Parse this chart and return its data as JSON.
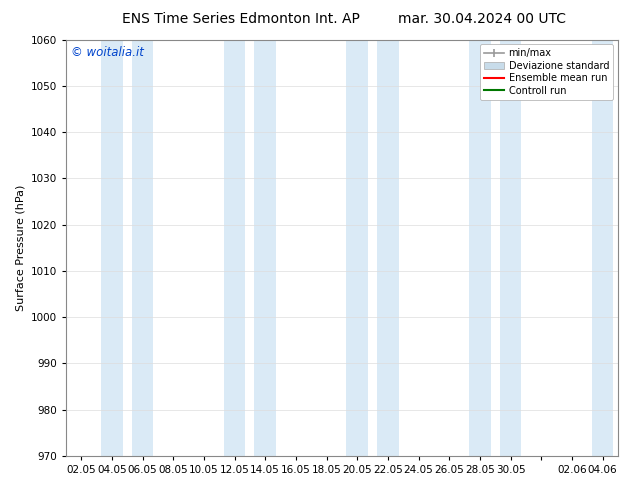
{
  "title_left": "ENS Time Series Edmonton Int. AP",
  "title_right": "mar. 30.04.2024 00 UTC",
  "ylabel": "Surface Pressure (hPa)",
  "ylim": [
    970,
    1060
  ],
  "yticks": [
    970,
    980,
    990,
    1000,
    1010,
    1020,
    1030,
    1040,
    1050,
    1060
  ],
  "x_labels": [
    "02.05",
    "04.05",
    "06.05",
    "08.05",
    "10.05",
    "12.05",
    "14.05",
    "16.05",
    "18.05",
    "20.05",
    "22.05",
    "24.05",
    "26.05",
    "28.05",
    "30.05",
    "",
    "02.06",
    "04.06"
  ],
  "x_positions": [
    0,
    1,
    2,
    3,
    4,
    5,
    6,
    7,
    8,
    9,
    10,
    11,
    12,
    13,
    14,
    15,
    16,
    17
  ],
  "shade_positions": [
    1,
    2,
    5,
    6,
    9,
    10,
    13,
    14,
    17
  ],
  "shade_color": "#daeaf6",
  "background_color": "#ffffff",
  "plot_bg_color": "#ffffff",
  "legend_labels": [
    "min/max",
    "Deviazione standard",
    "Ensemble mean run",
    "Controll run"
  ],
  "legend_colors": [
    "#a8c8e0",
    "#c8dcea",
    "#ff0000",
    "#007700"
  ],
  "watermark": "© woitalia.it",
  "watermark_color": "#0044cc",
  "title_fontsize": 10,
  "axis_label_fontsize": 8,
  "tick_fontsize": 7.5
}
